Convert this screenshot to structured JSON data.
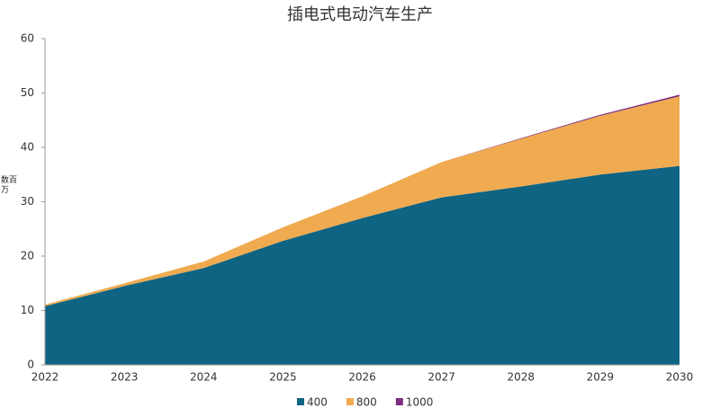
{
  "chart_data": {
    "type": "stacked_area",
    "title": "插电式电动汽车生产",
    "y_label": "数百万",
    "categories": [
      "2022",
      "2023",
      "2024",
      "2025",
      "2026",
      "2027",
      "2028",
      "2029",
      "2030"
    ],
    "series": [
      {
        "name": "400",
        "color": "#0e6482",
        "values": [
          10.8,
          14.5,
          17.8,
          22.8,
          27,
          30.8,
          32.8,
          35,
          36.6
        ]
      },
      {
        "name": "800",
        "color": "#f0aa50",
        "values": [
          0.3,
          0.5,
          1.2,
          2.5,
          4,
          6.5,
          8.8,
          10.8,
          12.8
        ]
      },
      {
        "name": "1000",
        "color": "#7b2d80",
        "values": [
          0,
          0,
          0,
          0,
          0,
          0,
          0.1,
          0.2,
          0.3
        ]
      }
    ],
    "ylim": [
      0,
      60
    ],
    "yticks": [
      0,
      10,
      20,
      30,
      40,
      50,
      60
    ],
    "legend": "bottom"
  }
}
